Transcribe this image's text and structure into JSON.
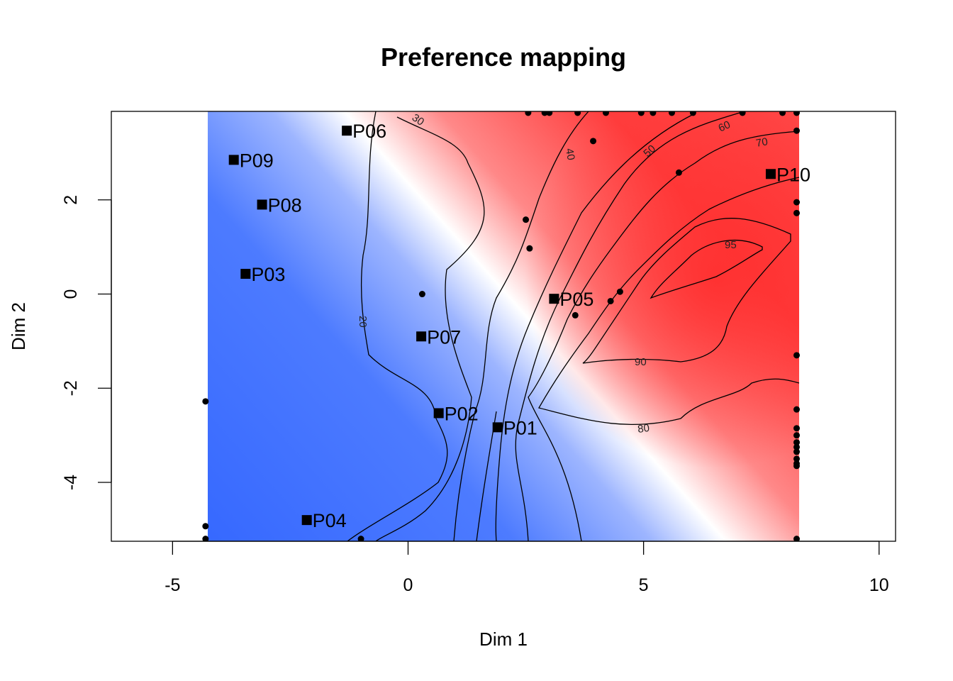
{
  "chart_data": {
    "type": "scatter",
    "title": "Preference mapping",
    "xlabel": "Dim 1",
    "ylabel": "Dim 2",
    "xlim": [
      -6.3,
      10.35
    ],
    "ylim": [
      -5.25,
      3.88
    ],
    "x_ticks": [
      -5,
      0,
      5,
      10
    ],
    "y_ticks": [
      -4,
      -2,
      0,
      2
    ],
    "grid": false,
    "heatmap": {
      "x_range": [
        -4.3,
        8.25
      ],
      "y_range": [
        -5.25,
        3.88
      ],
      "low_color": "#3366ff",
      "mid_color": "#ffffff",
      "high_color": "#ff3333"
    },
    "contour_levels": [
      "20",
      "30",
      "40",
      "50",
      "60",
      "70",
      "80",
      "90",
      "95"
    ],
    "products": [
      {
        "name": "P01",
        "x": 1.9,
        "y": -2.83
      },
      {
        "name": "P02",
        "x": 0.65,
        "y": -2.53
      },
      {
        "name": "P03",
        "x": -3.45,
        "y": 0.43
      },
      {
        "name": "P04",
        "x": -2.15,
        "y": -4.8
      },
      {
        "name": "P05",
        "x": 3.1,
        "y": -0.1
      },
      {
        "name": "P06",
        "x": -1.3,
        "y": 3.47
      },
      {
        "name": "P07",
        "x": 0.28,
        "y": -0.9
      },
      {
        "name": "P08",
        "x": -3.1,
        "y": 1.9
      },
      {
        "name": "P09",
        "x": -3.7,
        "y": 2.85
      },
      {
        "name": "P10",
        "x": 7.7,
        "y": 2.55
      }
    ],
    "consumers": [
      [
        -4.3,
        -2.28
      ],
      [
        -4.3,
        -4.93
      ],
      [
        -4.3,
        -5.2
      ],
      [
        -1.0,
        -5.2
      ],
      [
        0.3,
        0.0
      ],
      [
        2.5,
        1.58
      ],
      [
        2.58,
        0.97
      ],
      [
        3.55,
        -0.45
      ],
      [
        4.3,
        -0.15
      ],
      [
        4.5,
        0.05
      ],
      [
        3.93,
        3.25
      ],
      [
        5.75,
        2.58
      ],
      [
        2.55,
        3.85
      ],
      [
        2.9,
        3.85
      ],
      [
        3.0,
        3.85
      ],
      [
        3.6,
        3.85
      ],
      [
        4.2,
        3.85
      ],
      [
        4.95,
        3.85
      ],
      [
        5.2,
        3.85
      ],
      [
        5.6,
        3.85
      ],
      [
        6.05,
        3.85
      ],
      [
        7.1,
        3.85
      ],
      [
        7.95,
        3.85
      ],
      [
        8.25,
        3.85
      ],
      [
        8.25,
        3.47
      ],
      [
        8.25,
        1.95
      ],
      [
        8.25,
        1.72
      ],
      [
        8.25,
        -1.3
      ],
      [
        8.25,
        -2.45
      ],
      [
        8.25,
        -2.85
      ],
      [
        8.25,
        -3.0
      ],
      [
        8.25,
        -3.15
      ],
      [
        8.25,
        -3.25
      ],
      [
        8.25,
        -3.35
      ],
      [
        8.25,
        -3.5
      ],
      [
        8.25,
        -3.6
      ],
      [
        8.25,
        -3.65
      ],
      [
        8.25,
        -5.2
      ]
    ]
  }
}
